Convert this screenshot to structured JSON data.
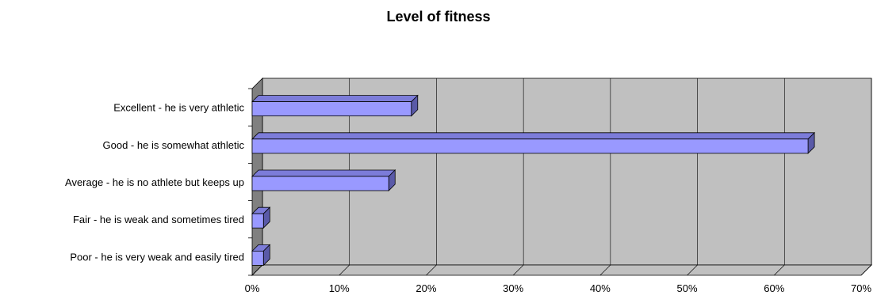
{
  "chart_data": {
    "type": "bar",
    "orientation": "horizontal",
    "title": "Level of fitness",
    "xlabel": "",
    "ylabel": "",
    "categories": [
      "Excellent - he is very athletic",
      "Good - he is somewhat athletic",
      "Average - he is no athlete but keeps up",
      "Fair - he is weak and sometimes tired",
      "Poor - he is very weak and easily tired"
    ],
    "values": [
      18.3,
      63.9,
      15.7,
      1.3,
      1.3
    ],
    "xlim": [
      0,
      70
    ],
    "xticks": [
      0,
      10,
      20,
      30,
      40,
      50,
      60,
      70
    ],
    "xtick_labels": [
      "0%",
      "10%",
      "20%",
      "30%",
      "40%",
      "50%",
      "60%",
      "70%"
    ],
    "value_format": "percent",
    "grid": true,
    "legend": "none",
    "style": "3d",
    "colors": {
      "bar_front": "#9999ff",
      "bar_top": "#7c7cd9",
      "bar_side": "#5a5aa8",
      "plot_back": "#c0c0c0",
      "plot_floor": "#808080",
      "gridline": "#000000"
    }
  }
}
